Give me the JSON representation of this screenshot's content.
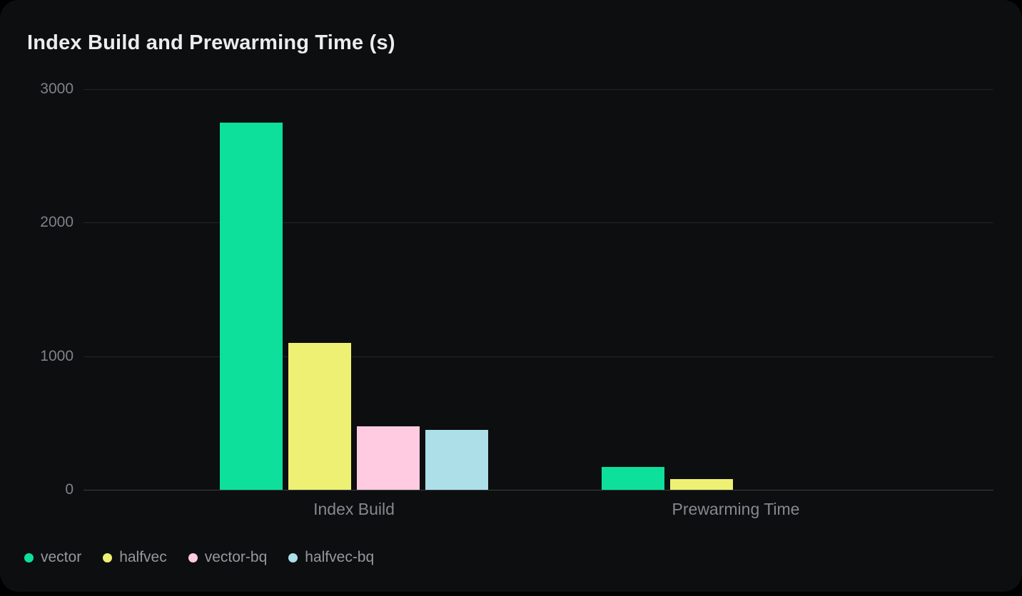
{
  "card": {
    "title": "Index Build and Prewarming Time (s)"
  },
  "chart_data": {
    "type": "bar",
    "title": "Index Build and Prewarming Time (s)",
    "categories": [
      "Index Build",
      "Prewarming Time"
    ],
    "series": [
      {
        "name": "vector",
        "color": "#0ce09a",
        "values": [
          2750,
          170
        ]
      },
      {
        "name": "halfvec",
        "color": "#eef073",
        "values": [
          1100,
          78
        ]
      },
      {
        "name": "vector-bq",
        "color": "#ffcbe0",
        "values": [
          475,
          0
        ]
      },
      {
        "name": "halfvec-bq",
        "color": "#addfe9",
        "values": [
          450,
          0
        ]
      }
    ],
    "ylabel": "",
    "xlabel": "",
    "y_ticks": [
      3000,
      2000,
      1000,
      0
    ],
    "ylim": [
      0,
      3000
    ],
    "grid": "horizontal",
    "legend_position": "bottom-left",
    "background_color": "#0d0e0f"
  }
}
